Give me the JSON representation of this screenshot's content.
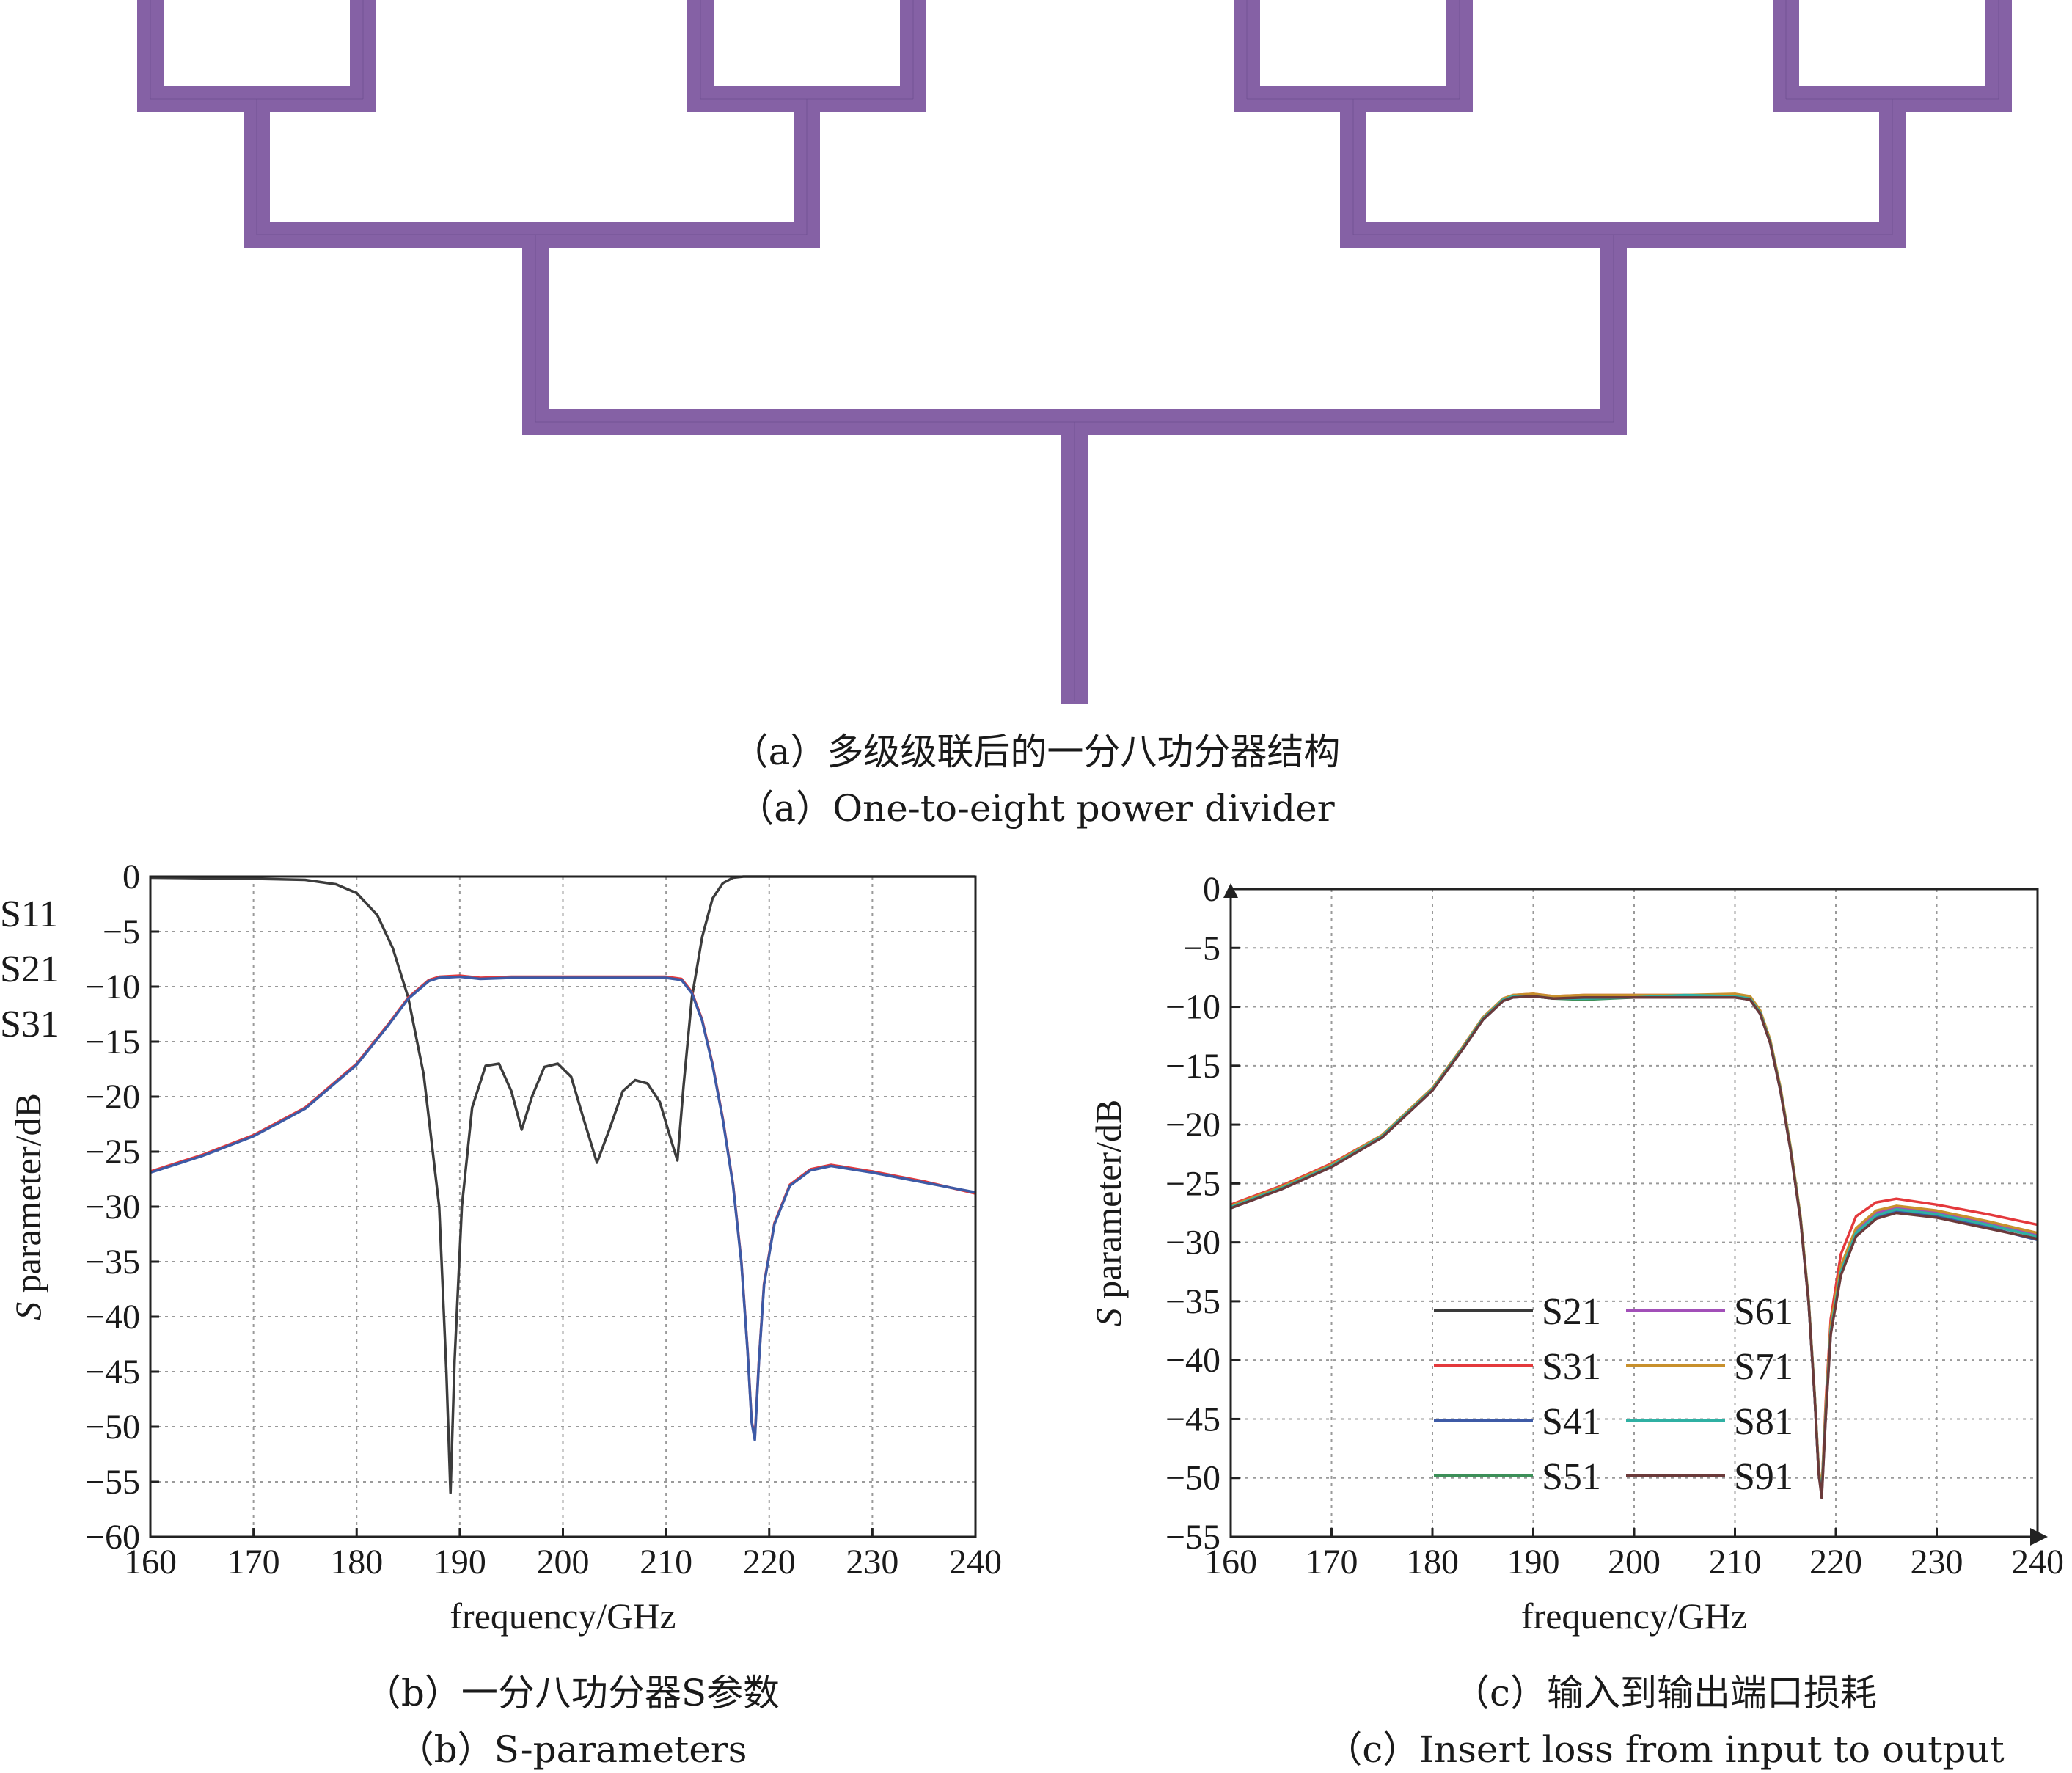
{
  "figure_a": {
    "caption_cn": "（a）多级级联后的一分八功分器结构",
    "caption_en": "（a）One-to-eight power divider",
    "trace_color": "#8561a5"
  },
  "chart_data": [
    {
      "id": "b",
      "type": "line",
      "caption_cn": "（b）一分八功分器S参数",
      "caption_en": "（b）S-parameters",
      "xlabel": "frequency/GHz",
      "ylabel": "S parameter/dB",
      "xlim": [
        160,
        240
      ],
      "ylim": [
        -60,
        0
      ],
      "xticks": [
        160,
        170,
        180,
        190,
        200,
        210,
        220,
        230,
        240
      ],
      "yticks": [
        0,
        -5,
        -10,
        -15,
        -20,
        -25,
        -30,
        -35,
        -40,
        -45,
        -50,
        -55,
        -60
      ],
      "grid": true,
      "legend_position": "top-right",
      "series": [
        {
          "name": "S11",
          "color": "#3c3c3c",
          "x": [
            160,
            170,
            175,
            178,
            180,
            182,
            183.5,
            185,
            186.5,
            188,
            188.7,
            189.1,
            189.5,
            190.2,
            191.2,
            192.5,
            193.8,
            195,
            196,
            197,
            198.2,
            199.5,
            200.8,
            202,
            203.3,
            204.5,
            205.8,
            207,
            208.2,
            209.4,
            210.5,
            211.1,
            211.7,
            212.5,
            213.5,
            214.5,
            215.5,
            216.5,
            217.5,
            220,
            230,
            240
          ],
          "y": [
            -0.1,
            -0.2,
            -0.3,
            -0.7,
            -1.5,
            -3.5,
            -6.5,
            -11,
            -18,
            -30,
            -45,
            -56,
            -44,
            -30,
            -21,
            -17.2,
            -17,
            -19.5,
            -23,
            -20,
            -17.3,
            -17,
            -18.2,
            -22,
            -26,
            -23,
            -19.5,
            -18.5,
            -18.8,
            -20.5,
            -24,
            -25.8,
            -19,
            -11,
            -5.5,
            -2,
            -0.6,
            -0.1,
            0,
            0,
            0,
            0
          ]
        },
        {
          "name": "S21",
          "color": "#e4393c",
          "x": [
            160,
            165,
            170,
            175,
            180,
            183,
            185,
            187,
            188,
            190,
            192,
            195,
            200,
            205,
            210,
            211.5,
            212.5,
            213.5,
            214.5,
            215.5,
            216.5,
            217.3,
            217.9,
            218.3,
            218.6,
            219,
            219.5,
            220.5,
            222,
            224,
            226,
            230,
            235,
            240
          ],
          "y": [
            -26.8,
            -25.3,
            -23.5,
            -21,
            -17,
            -13.5,
            -11,
            -9.4,
            -9.1,
            -9,
            -9.2,
            -9.1,
            -9.1,
            -9.1,
            -9.1,
            -9.3,
            -10.5,
            -13,
            -17,
            -22,
            -28,
            -35,
            -43,
            -49.5,
            -51,
            -44,
            -37,
            -31.5,
            -28,
            -26.6,
            -26.2,
            -26.8,
            -27.7,
            -28.8
          ]
        },
        {
          "name": "S31",
          "color": "#3d5aa6",
          "x": [
            160,
            165,
            170,
            175,
            180,
            183,
            185,
            187,
            188,
            190,
            192,
            195,
            200,
            205,
            210,
            211.5,
            212.5,
            213.5,
            214.5,
            215.5,
            216.5,
            217.3,
            217.9,
            218.3,
            218.6,
            219,
            219.5,
            220.5,
            222,
            224,
            226,
            230,
            235,
            240
          ],
          "y": [
            -26.9,
            -25.4,
            -23.6,
            -21.1,
            -17.1,
            -13.6,
            -11.1,
            -9.5,
            -9.2,
            -9.1,
            -9.3,
            -9.2,
            -9.2,
            -9.2,
            -9.2,
            -9.4,
            -10.6,
            -13.1,
            -17.1,
            -22.1,
            -28.1,
            -35.1,
            -43.1,
            -49.6,
            -51.2,
            -44.1,
            -37.1,
            -31.6,
            -28.1,
            -26.7,
            -26.3,
            -26.9,
            -27.8,
            -28.7
          ]
        }
      ]
    },
    {
      "id": "c",
      "type": "line",
      "caption_cn": "（c）输入到输出端口损耗",
      "caption_en": "（c）Insert loss from input to output",
      "xlabel": "frequency/GHz",
      "ylabel": "S parameter/dB",
      "xlim": [
        160,
        240
      ],
      "ylim": [
        -55,
        0
      ],
      "xticks": [
        160,
        170,
        180,
        190,
        200,
        210,
        220,
        230,
        240
      ],
      "yticks": [
        0,
        -5,
        -10,
        -15,
        -20,
        -25,
        -30,
        -35,
        -40,
        -45,
        -50,
        -55
      ],
      "grid": true,
      "legend_position": "bottom-center, two columns",
      "series": [
        {
          "name": "S21",
          "color": "#3a3a3a",
          "x": [
            160,
            165,
            170,
            175,
            180,
            183,
            185,
            187,
            188,
            190,
            192,
            195,
            200,
            205,
            210,
            211.5,
            212.5,
            213.5,
            214.5,
            215.5,
            216.5,
            217.3,
            217.9,
            218.3,
            218.6,
            219,
            219.5,
            220.5,
            222,
            224,
            226,
            230,
            235,
            240
          ],
          "y": [
            -27,
            -25.4,
            -23.5,
            -21,
            -17,
            -13.5,
            -11,
            -9.4,
            -9.1,
            -9,
            -9.2,
            -9.1,
            -9.1,
            -9.1,
            -9.1,
            -9.3,
            -10.5,
            -13,
            -17,
            -22,
            -28,
            -35,
            -43,
            -49.5,
            -51.3,
            -44.5,
            -37.5,
            -32.5,
            -29.2,
            -27.7,
            -27.2,
            -27.6,
            -28.5,
            -29.5
          ]
        },
        {
          "name": "S31",
          "color": "#e4393c",
          "x": [
            160,
            165,
            170,
            175,
            180,
            183,
            185,
            187,
            188,
            190,
            192,
            195,
            200,
            205,
            210,
            211.5,
            212.5,
            213.5,
            214.5,
            215.5,
            216.5,
            217.3,
            217.9,
            218.3,
            218.6,
            219,
            219.5,
            220.5,
            222,
            224,
            226,
            230,
            235,
            240
          ],
          "y": [
            -26.8,
            -25.2,
            -23.3,
            -20.9,
            -16.9,
            -13.4,
            -10.9,
            -9.3,
            -9,
            -8.9,
            -9.1,
            -9,
            -9,
            -9,
            -9,
            -9.2,
            -10.4,
            -12.9,
            -16.9,
            -21.9,
            -27.9,
            -34.9,
            -42.9,
            -49.2,
            -51,
            -43.5,
            -36.5,
            -31,
            -27.8,
            -26.6,
            -26.3,
            -26.8,
            -27.6,
            -28.5
          ]
        },
        {
          "name": "S41",
          "color": "#3d5aa6",
          "x": [
            160,
            165,
            170,
            175,
            180,
            183,
            185,
            187,
            188,
            190,
            192,
            195,
            200,
            205,
            210,
            211.5,
            212.5,
            213.5,
            214.5,
            215.5,
            216.5,
            217.3,
            217.9,
            218.3,
            218.6,
            219,
            219.5,
            220.5,
            222,
            224,
            226,
            230,
            235,
            240
          ],
          "y": [
            -27.1,
            -25.5,
            -23.6,
            -21.1,
            -17.1,
            -13.6,
            -11.1,
            -9.5,
            -9.2,
            -9.1,
            -9.3,
            -9.2,
            -9.2,
            -9.2,
            -9.2,
            -9.4,
            -10.6,
            -13.1,
            -17.1,
            -22.1,
            -28.1,
            -35.1,
            -43.1,
            -49.6,
            -51.5,
            -44.7,
            -37.7,
            -32.7,
            -29.4,
            -27.9,
            -27.4,
            -27.8,
            -28.7,
            -29.8
          ]
        },
        {
          "name": "S51",
          "color": "#3c8f58",
          "x": [
            160,
            165,
            170,
            175,
            180,
            183,
            185,
            187,
            188,
            190,
            192,
            195,
            200,
            205,
            210,
            211.5,
            212.5,
            213.5,
            214.5,
            215.5,
            216.5,
            217.3,
            217.9,
            218.3,
            218.6,
            219,
            219.5,
            220.5,
            222,
            224,
            226,
            230,
            235,
            240
          ],
          "y": [
            -27,
            -25.4,
            -23.5,
            -21,
            -17,
            -13.5,
            -11,
            -9.4,
            -9.1,
            -9.1,
            -9.3,
            -9.4,
            -9.2,
            -9.1,
            -9.2,
            -9.3,
            -10.5,
            -13,
            -17,
            -22,
            -28,
            -35,
            -43,
            -49.5,
            -51.2,
            -44.4,
            -37.4,
            -32.4,
            -29.1,
            -27.6,
            -27.1,
            -27.5,
            -28.4,
            -29.4
          ]
        },
        {
          "name": "S61",
          "color": "#a24fb8",
          "x": [
            160,
            165,
            170,
            175,
            180,
            183,
            185,
            187,
            188,
            190,
            192,
            195,
            200,
            205,
            210,
            211.5,
            212.5,
            213.5,
            214.5,
            215.5,
            216.5,
            217.3,
            217.9,
            218.3,
            218.6,
            219,
            219.5,
            220.5,
            222,
            224,
            226,
            230,
            235,
            240
          ],
          "y": [
            -27,
            -25.4,
            -23.5,
            -21,
            -17,
            -13.5,
            -11,
            -9.4,
            -9.1,
            -9,
            -9.2,
            -9.1,
            -9.1,
            -9.1,
            -9.1,
            -9.3,
            -10.5,
            -13,
            -17,
            -22,
            -28,
            -35,
            -43,
            -49.5,
            -51.1,
            -44.3,
            -37.3,
            -32.3,
            -29,
            -27.5,
            -27,
            -27.4,
            -28.3,
            -29.3
          ]
        },
        {
          "name": "S71",
          "color": "#c8902c",
          "x": [
            160,
            165,
            170,
            175,
            180,
            183,
            185,
            187,
            188,
            190,
            192,
            195,
            200,
            205,
            210,
            211.5,
            212.5,
            213.5,
            214.5,
            215.5,
            216.5,
            217.3,
            217.9,
            218.3,
            218.6,
            219,
            219.5,
            220.5,
            222,
            224,
            226,
            230,
            235,
            240
          ],
          "y": [
            -26.9,
            -25.3,
            -23.4,
            -20.9,
            -16.9,
            -13.4,
            -10.9,
            -9.3,
            -9,
            -8.9,
            -9.1,
            -9,
            -9,
            -9,
            -8.9,
            -9.1,
            -10.3,
            -12.8,
            -16.8,
            -21.8,
            -27.8,
            -34.8,
            -42.8,
            -49.2,
            -50.9,
            -44,
            -37,
            -32,
            -28.8,
            -27.3,
            -26.9,
            -27.3,
            -28.2,
            -29.2
          ]
        },
        {
          "name": "S81",
          "color": "#2fb0a3",
          "x": [
            160,
            165,
            170,
            175,
            180,
            183,
            185,
            187,
            188,
            190,
            192,
            195,
            200,
            205,
            210,
            211.5,
            212.5,
            213.5,
            214.5,
            215.5,
            216.5,
            217.3,
            217.9,
            218.3,
            218.6,
            219,
            219.5,
            220.5,
            222,
            224,
            226,
            230,
            235,
            240
          ],
          "y": [
            -27,
            -25.4,
            -23.5,
            -21,
            -17,
            -13.5,
            -11,
            -9.4,
            -9.1,
            -9.1,
            -9.3,
            -9.3,
            -9.2,
            -9,
            -9.1,
            -9.3,
            -10.5,
            -13,
            -17,
            -22,
            -28,
            -35,
            -43,
            -49.5,
            -51.3,
            -44.5,
            -37.5,
            -32.5,
            -29.2,
            -27.7,
            -27.2,
            -27.6,
            -28.5,
            -29.5
          ]
        },
        {
          "name": "S91",
          "color": "#6b3a3a",
          "x": [
            160,
            165,
            170,
            175,
            180,
            183,
            185,
            187,
            188,
            190,
            192,
            195,
            200,
            205,
            210,
            211.5,
            212.5,
            213.5,
            214.5,
            215.5,
            216.5,
            217.3,
            217.9,
            218.3,
            218.6,
            219,
            219.5,
            220.5,
            222,
            224,
            226,
            230,
            235,
            240
          ],
          "y": [
            -27.1,
            -25.5,
            -23.6,
            -21.1,
            -17.1,
            -13.6,
            -11.1,
            -9.5,
            -9.2,
            -9.1,
            -9.3,
            -9.2,
            -9.2,
            -9.2,
            -9.2,
            -9.4,
            -10.6,
            -13.1,
            -17.1,
            -22.1,
            -28.1,
            -35.1,
            -43.1,
            -49.6,
            -51.7,
            -44.8,
            -37.8,
            -32.8,
            -29.5,
            -28,
            -27.5,
            -27.9,
            -28.8,
            -29.7
          ]
        }
      ]
    }
  ]
}
